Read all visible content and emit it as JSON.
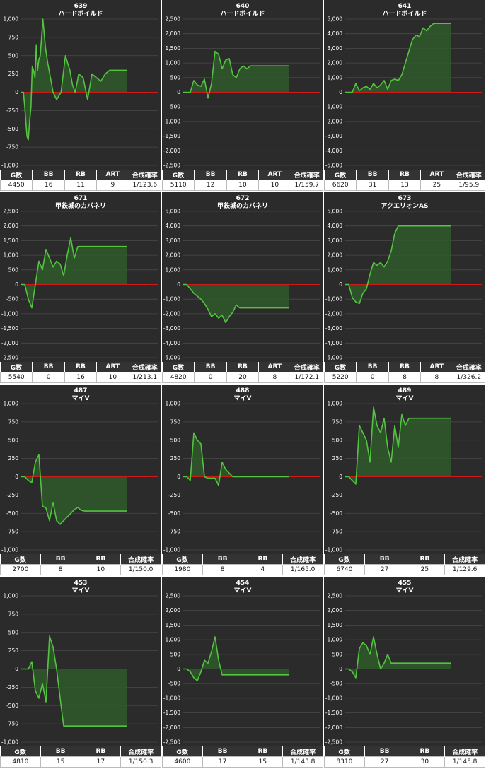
{
  "columns_default": [
    "G数",
    "BB",
    "RB",
    "ART",
    "合成確率"
  ],
  "columns_noart": [
    "G数",
    "BB",
    "RB",
    "合成確率"
  ],
  "colors": {
    "line": "#52c43f",
    "fill": "#2f5a2a",
    "zero": "#d01818",
    "bg": "#2b2b2b",
    "grid": "#4a4a4a"
  },
  "chart_data": [
    {
      "type": "line",
      "id": "639",
      "name": "ハードボイルド",
      "ylim": [
        -1000,
        1000
      ],
      "ticks": [
        1000,
        750,
        500,
        250,
        0,
        -250,
        -500,
        -750,
        -1000
      ],
      "x": [
        0,
        2,
        5,
        8,
        11,
        13,
        16,
        19,
        22,
        25,
        28,
        31,
        34,
        37,
        40,
        43,
        46,
        49,
        52,
        55,
        60,
        66,
        72,
        80,
        90,
        100,
        105,
        110,
        116,
        122,
        130,
        140,
        150,
        160,
        170,
        180,
        190,
        200,
        210,
        220,
        230,
        240
      ],
      "values": [
        0,
        0,
        0,
        -200,
        -450,
        -600,
        -650,
        -400,
        -200,
        350,
        300,
        200,
        650,
        300,
        450,
        500,
        750,
        1000,
        800,
        600,
        400,
        200,
        0,
        -100,
        0,
        500,
        400,
        300,
        100,
        0,
        250,
        200,
        -100,
        250,
        200,
        150,
        250,
        300,
        300,
        300,
        300,
        300
      ],
      "stats": {
        "G数": "4450",
        "BB": "16",
        "RB": "11",
        "ART": "9",
        "合成確率": "1/123.6"
      }
    },
    {
      "type": "line",
      "id": "640",
      "name": "ハードボイルド",
      "ylim": [
        -2500,
        2500
      ],
      "ticks": [
        2500,
        2000,
        1500,
        1000,
        500,
        0,
        -500,
        -1000,
        -1500,
        -2000,
        -2500
      ],
      "x": [
        0,
        5,
        10,
        15,
        20,
        25,
        30,
        35,
        40,
        45,
        50,
        55,
        60,
        65,
        70,
        75,
        80,
        85,
        90,
        95,
        100,
        105,
        110,
        115,
        120,
        125,
        130,
        135,
        140,
        145,
        150
      ],
      "values": [
        0,
        0,
        0,
        400,
        250,
        200,
        450,
        -200,
        300,
        1400,
        1300,
        800,
        1100,
        1150,
        600,
        500,
        800,
        900,
        800,
        900,
        900,
        900,
        900,
        900,
        900,
        900,
        900,
        900,
        900,
        900,
        900
      ],
      "stats": {
        "G数": "5110",
        "BB": "12",
        "RB": "10",
        "ART": "10",
        "合成確率": "1/159.7"
      }
    },
    {
      "type": "line",
      "id": "641",
      "name": "ハードボイルド",
      "ylim": [
        -5000,
        5000
      ],
      "ticks": [
        5000,
        4000,
        3000,
        2000,
        1000,
        0,
        -1000,
        -2000,
        -3000,
        -4000,
        -5000
      ],
      "x": [
        0,
        5,
        10,
        15,
        20,
        25,
        30,
        35,
        40,
        45,
        50,
        55,
        60,
        65,
        70,
        75,
        80,
        85,
        90,
        95,
        100,
        105,
        110,
        115,
        120,
        125,
        130,
        135,
        140,
        145,
        150
      ],
      "values": [
        0,
        0,
        0,
        600,
        100,
        300,
        400,
        200,
        600,
        300,
        500,
        800,
        200,
        800,
        900,
        800,
        1200,
        2000,
        2800,
        3600,
        3900,
        3800,
        4400,
        4200,
        4500,
        4700,
        4700,
        4700,
        4700,
        4700,
        4700
      ],
      "stats": {
        "G数": "6620",
        "BB": "31",
        "RB": "13",
        "ART": "25",
        "合成確率": "1/95.9"
      }
    },
    {
      "type": "line",
      "id": "671",
      "name": "甲鉄城のカバネリ",
      "ylim": [
        -2500,
        2500
      ],
      "ticks": [
        2500,
        2000,
        1500,
        1000,
        500,
        0,
        -500,
        -1000,
        -1500,
        -2000,
        -2500
      ],
      "x": [
        0,
        5,
        10,
        15,
        20,
        25,
        30,
        35,
        40,
        45,
        50,
        55,
        60,
        65,
        70,
        75,
        80,
        85,
        90,
        95,
        100,
        105,
        110,
        115,
        120,
        125,
        130,
        135,
        140,
        145,
        150
      ],
      "values": [
        0,
        0,
        -500,
        -800,
        0,
        800,
        500,
        1200,
        900,
        600,
        800,
        700,
        300,
        1000,
        1600,
        900,
        1300,
        1300,
        1300,
        1300,
        1300,
        1300,
        1300,
        1300,
        1300,
        1300,
        1300,
        1300,
        1300,
        1300,
        1300
      ],
      "stats": {
        "G数": "5540",
        "BB": "0",
        "RB": "16",
        "ART": "10",
        "合成確率": "1/213.1"
      }
    },
    {
      "type": "line",
      "id": "672",
      "name": "甲鉄城のカバネリ",
      "ylim": [
        -5000,
        5000
      ],
      "ticks": [
        5000,
        4000,
        3000,
        2000,
        1000,
        0,
        -1000,
        -2000,
        -3000,
        -4000,
        -5000
      ],
      "x": [
        0,
        5,
        10,
        15,
        20,
        25,
        30,
        35,
        40,
        45,
        50,
        55,
        60,
        65,
        70,
        75,
        80,
        85,
        90,
        95,
        100,
        105,
        110,
        115,
        120,
        125,
        130,
        135,
        140,
        145,
        150
      ],
      "values": [
        0,
        0,
        -300,
        -600,
        -800,
        -1000,
        -1300,
        -1700,
        -2200,
        -2000,
        -2300,
        -2100,
        -2600,
        -2200,
        -1900,
        -1400,
        -1600,
        -1600,
        -1600,
        -1600,
        -1600,
        -1600,
        -1600,
        -1600,
        -1600,
        -1600,
        -1600,
        -1600,
        -1600,
        -1600,
        -1600
      ],
      "stats": {
        "G数": "4820",
        "BB": "0",
        "RB": "20",
        "ART": "8",
        "合成確率": "1/172.1"
      }
    },
    {
      "type": "line",
      "id": "673",
      "name": "アクエリオンAS",
      "ylim": [
        -5000,
        5000
      ],
      "ticks": [
        5000,
        4000,
        3000,
        2000,
        1000,
        0,
        -1000,
        -2000,
        -3000,
        -4000,
        -5000
      ],
      "x": [
        0,
        5,
        10,
        15,
        20,
        25,
        30,
        35,
        40,
        45,
        50,
        55,
        60,
        65,
        70,
        75,
        80,
        85,
        90,
        95,
        100,
        105,
        110,
        115,
        120,
        125,
        130,
        135,
        140,
        145,
        150
      ],
      "values": [
        0,
        0,
        -900,
        -1200,
        -1300,
        -600,
        -300,
        700,
        1500,
        1300,
        1500,
        1200,
        1600,
        2300,
        3500,
        4000,
        4000,
        4000,
        4000,
        4000,
        4000,
        4000,
        4000,
        4000,
        4000,
        4000,
        4000,
        4000,
        4000,
        4000,
        4000
      ],
      "stats": {
        "G数": "5220",
        "BB": "0",
        "RB": "8",
        "ART": "8",
        "合成確率": "1/326.2"
      }
    },
    {
      "type": "line",
      "id": "487",
      "name": "マイV",
      "ylim": [
        -1000,
        1000
      ],
      "ticks": [
        1000,
        750,
        500,
        250,
        0,
        -250,
        -500,
        -750,
        -1000
      ],
      "x": [
        0,
        5,
        10,
        15,
        20,
        25,
        30,
        35,
        40,
        45,
        50,
        55,
        60,
        65,
        70,
        75,
        80,
        85,
        90,
        95,
        100,
        105,
        110,
        115,
        120,
        125,
        130,
        135,
        140,
        145,
        150
      ],
      "values": [
        0,
        0,
        -50,
        -80,
        200,
        300,
        -400,
        -430,
        -600,
        -350,
        -600,
        -650,
        -600,
        -550,
        -500,
        -450,
        -420,
        -460,
        -470,
        -470,
        -470,
        -470,
        -470,
        -470,
        -470,
        -470,
        -470,
        -470,
        -470,
        -470,
        -470
      ],
      "stats": {
        "G数": "2700",
        "BB": "8",
        "RB": "10",
        "合成確率": "1/150.0"
      }
    },
    {
      "type": "line",
      "id": "488",
      "name": "マイV",
      "ylim": [
        -1000,
        1000
      ],
      "ticks": [
        1000,
        750,
        500,
        250,
        0,
        -250,
        -500,
        -750,
        -1000
      ],
      "x": [
        0,
        5,
        10,
        15,
        20,
        25,
        30,
        35,
        40,
        45,
        50,
        55,
        60,
        65,
        70,
        75,
        80,
        85,
        90,
        95,
        100,
        105,
        110,
        115,
        120,
        125,
        130,
        135,
        140,
        145,
        150
      ],
      "values": [
        0,
        0,
        -50,
        600,
        500,
        450,
        0,
        -20,
        -20,
        -20,
        -120,
        200,
        100,
        50,
        0,
        0,
        0,
        0,
        0,
        0,
        0,
        0,
        0,
        0,
        0,
        0,
        0,
        0,
        0,
        0,
        0
      ],
      "stats": {
        "G数": "1980",
        "BB": "8",
        "RB": "4",
        "合成確率": "1/165.0"
      }
    },
    {
      "type": "line",
      "id": "489",
      "name": "マイV",
      "ylim": [
        -1000,
        1000
      ],
      "ticks": [
        1000,
        750,
        500,
        250,
        0,
        -250,
        -500,
        -750,
        -1000
      ],
      "x": [
        0,
        5,
        10,
        15,
        20,
        25,
        30,
        35,
        40,
        45,
        50,
        55,
        60,
        65,
        70,
        75,
        80,
        85,
        90,
        95,
        100,
        105,
        110,
        115,
        120,
        125,
        130,
        135,
        140,
        145,
        150
      ],
      "values": [
        0,
        0,
        -50,
        -100,
        700,
        600,
        500,
        200,
        950,
        700,
        600,
        800,
        400,
        200,
        700,
        400,
        850,
        700,
        800,
        800,
        800,
        800,
        800,
        800,
        800,
        800,
        800,
        800,
        800,
        800,
        800
      ],
      "stats": {
        "G数": "6740",
        "BB": "27",
        "RB": "25",
        "合成確率": "1/129.6"
      }
    },
    {
      "type": "line",
      "id": "453",
      "name": "マイV",
      "ylim": [
        -1000,
        1000
      ],
      "ticks": [
        1000,
        750,
        500,
        250,
        0,
        -250,
        -500,
        -750,
        -1000
      ],
      "x": [
        0,
        5,
        10,
        15,
        20,
        25,
        30,
        35,
        40,
        45,
        50,
        55,
        60,
        65,
        70,
        75,
        80,
        85,
        90,
        95,
        100,
        105,
        110,
        115,
        120,
        125,
        130,
        135,
        140,
        145,
        150
      ],
      "values": [
        0,
        0,
        0,
        100,
        -300,
        -400,
        -200,
        -450,
        450,
        300,
        0,
        -400,
        -780,
        -780,
        -780,
        -780,
        -780,
        -780,
        -780,
        -780,
        -780,
        -780,
        -780,
        -780,
        -780,
        -780,
        -780,
        -780,
        -780,
        -780,
        -780
      ],
      "stats": {
        "G数": "4810",
        "BB": "15",
        "RB": "17",
        "合成確率": "1/150.3"
      }
    },
    {
      "type": "line",
      "id": "454",
      "name": "マイV",
      "ylim": [
        -2500,
        2500
      ],
      "ticks": [
        2500,
        2000,
        1500,
        1000,
        500,
        0,
        -500,
        -1000,
        -1500,
        -2000,
        -2500
      ],
      "x": [
        0,
        5,
        10,
        15,
        20,
        25,
        30,
        35,
        40,
        45,
        50,
        55,
        60,
        65,
        70,
        75,
        80,
        85,
        90,
        95,
        100,
        105,
        110,
        115,
        120,
        125,
        130,
        135,
        140,
        145,
        150
      ],
      "values": [
        0,
        0,
        -100,
        -300,
        -400,
        -100,
        300,
        200,
        600,
        1100,
        300,
        -200,
        -200,
        -200,
        -200,
        -200,
        -200,
        -200,
        -200,
        -200,
        -200,
        -200,
        -200,
        -200,
        -200,
        -200,
        -200,
        -200,
        -200,
        -200,
        -200
      ],
      "stats": {
        "G数": "4600",
        "BB": "17",
        "RB": "15",
        "合成確率": "1/143.8"
      }
    },
    {
      "type": "line",
      "id": "455",
      "name": "マイV",
      "ylim": [
        -2500,
        2500
      ],
      "ticks": [
        2500,
        2000,
        1500,
        1000,
        500,
        0,
        -500,
        -1000,
        -1500,
        -2000,
        -2500
      ],
      "x": [
        0,
        5,
        10,
        15,
        20,
        25,
        30,
        35,
        40,
        45,
        50,
        55,
        60,
        65,
        70,
        75,
        80,
        85,
        90,
        95,
        100,
        105,
        110,
        115,
        120,
        125,
        130,
        135,
        140,
        145,
        150
      ],
      "values": [
        0,
        0,
        -100,
        -300,
        700,
        900,
        800,
        500,
        1100,
        500,
        0,
        200,
        500,
        200,
        200,
        200,
        200,
        200,
        200,
        200,
        200,
        200,
        200,
        200,
        200,
        200,
        200,
        200,
        200,
        200,
        200
      ],
      "stats": {
        "G数": "8310",
        "BB": "27",
        "RB": "30",
        "合成確率": "1/145.8"
      }
    }
  ]
}
